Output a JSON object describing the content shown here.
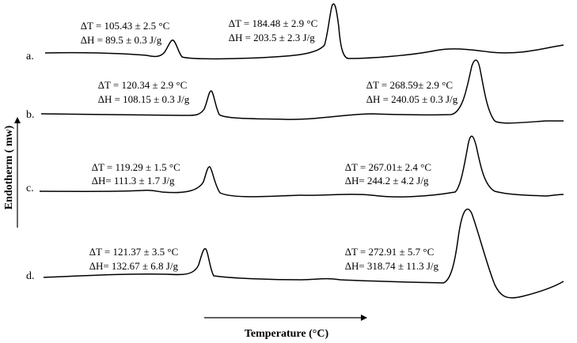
{
  "chart_data": {
    "type": "line",
    "xlabel": "Temperature (°C)",
    "ylabel": "Endotherm ( mw)",
    "grid": false,
    "legend": "none",
    "series": [
      {
        "name": "a.",
        "color": "#000000",
        "peaks": [
          {
            "label_dT": "∆T = 105.43 ± 2.5 °C",
            "label_dH": "∆H = 89.5 ± 0.3 J/g"
          },
          {
            "label_dT": "∆T = 184.48 ± 2.9 °C",
            "label_dH": "∆H = 203.5 ± 2.3 J/g"
          }
        ]
      },
      {
        "name": "b.",
        "color": "#000000",
        "peaks": [
          {
            "label_dT": "∆T = 120.34 ± 2.9 °C",
            "label_dH": "∆H = 108.15 ± 0.3 J/g"
          },
          {
            "label_dT": "∆T = 268.59± 2.9 °C",
            "label_dH": "∆H = 240.05 ± 0.3 J/g"
          }
        ]
      },
      {
        "name": "c.",
        "color": "#000000",
        "peaks": [
          {
            "label_dT": "∆T = 119.29 ± 1.5 °C",
            "label_dH": "∆H= 111.3 ± 1.7 J/g"
          },
          {
            "label_dT": "∆T = 267.01± 2.4 °C",
            "label_dH": "∆H= 244.2 ± 4.2 J/g"
          }
        ]
      },
      {
        "name": "d.",
        "color": "#000000",
        "peaks": [
          {
            "label_dT": "∆T = 121.37 ± 3.5 °C",
            "label_dH": "∆H= 132.67 ± 6.8 J/g"
          },
          {
            "label_dT": "∆T = 272.91 ± 5.7 °C",
            "label_dH": "∆H= 318.74 ± 11.3 J/g"
          }
        ]
      }
    ]
  }
}
